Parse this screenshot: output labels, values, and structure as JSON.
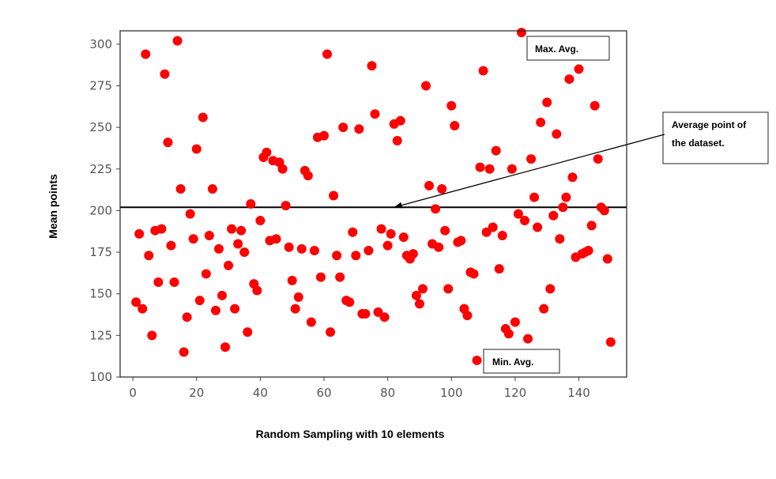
{
  "chart_data": {
    "type": "scatter",
    "title": "",
    "xlabel": "Random Sampling with 10 elements",
    "ylabel": "Mean points",
    "xlim": [
      -4,
      155
    ],
    "ylim": [
      100,
      308
    ],
    "xticks": [
      0,
      20,
      40,
      60,
      80,
      100,
      120,
      140
    ],
    "yticks": [
      100,
      125,
      150,
      175,
      200,
      225,
      250,
      275,
      300
    ],
    "grid": false,
    "marker_color": "#ff0000",
    "reference_line": {
      "y": 202,
      "color": "#000000"
    },
    "series": [
      {
        "x": [
          1,
          2,
          3,
          4,
          5,
          6,
          7,
          8,
          9,
          10,
          11,
          12,
          13,
          14,
          15,
          16,
          17,
          18,
          19,
          20,
          21,
          22,
          23,
          24,
          25,
          26,
          27,
          28,
          29,
          30,
          31,
          32,
          33,
          34,
          35,
          36,
          37,
          38,
          39,
          40,
          41,
          42,
          43,
          44,
          45,
          46,
          47,
          48,
          49,
          50,
          51,
          52,
          53,
          54,
          55,
          56,
          57,
          58,
          59,
          60,
          61,
          62,
          63,
          64,
          65,
          66,
          67,
          68,
          69,
          70,
          71,
          72,
          73,
          74,
          75,
          76,
          77,
          78,
          79,
          80,
          81,
          82,
          83,
          84,
          85,
          86,
          87,
          88,
          89,
          90,
          91,
          92,
          93,
          94,
          95,
          96,
          97,
          98,
          99,
          100,
          101,
          102,
          103,
          104,
          105,
          106,
          107,
          108,
          109,
          110,
          111,
          112,
          113,
          114,
          115,
          116,
          117,
          118,
          119,
          120,
          121,
          122,
          123,
          124,
          125,
          126,
          127,
          128,
          129,
          130,
          131,
          132,
          133,
          134,
          135,
          136,
          137,
          138,
          139,
          140,
          141,
          142,
          143,
          144,
          145,
          146,
          147,
          148,
          149,
          150
        ],
        "y": [
          145,
          186,
          141,
          294,
          173,
          125,
          188,
          157,
          189,
          282,
          241,
          179,
          157,
          302,
          213,
          115,
          136,
          198,
          183,
          237,
          146,
          256,
          162,
          185,
          213,
          140,
          177,
          149,
          118,
          167,
          189,
          141,
          180,
          188,
          175,
          127,
          204,
          156,
          152,
          194,
          232,
          235,
          182,
          230,
          183,
          229,
          225,
          203,
          178,
          158,
          141,
          148,
          177,
          224,
          221,
          133,
          176,
          244,
          160,
          245,
          294,
          127,
          209,
          173,
          160,
          250,
          146,
          145,
          187,
          173,
          249,
          138,
          138,
          176,
          287,
          258,
          139,
          189,
          136,
          179,
          186,
          252,
          242,
          254,
          184,
          173,
          171,
          174,
          149,
          144,
          153,
          275,
          215,
          180,
          201,
          178,
          213,
          188,
          153,
          263,
          251,
          181,
          182,
          141,
          137,
          163,
          162,
          110,
          226,
          284,
          187,
          225,
          190,
          236,
          165,
          185,
          129,
          126,
          225,
          133,
          198,
          307,
          194,
          123,
          231,
          208,
          190,
          253,
          141,
          265,
          153,
          197,
          246,
          183,
          202,
          208,
          279,
          220,
          172,
          285,
          174,
          175,
          176,
          191,
          263,
          231,
          202,
          200,
          171,
          121
        ]
      }
    ],
    "annotations": [
      {
        "text": "Max. Avg.",
        "x": 123,
        "y": 307
      },
      {
        "text": "Min. Avg.",
        "x": 109,
        "y": 110
      },
      {
        "text_lines": [
          "Average point of",
          "the dataset."
        ],
        "arrow_to": {
          "x": 82,
          "y": 202
        }
      }
    ]
  }
}
